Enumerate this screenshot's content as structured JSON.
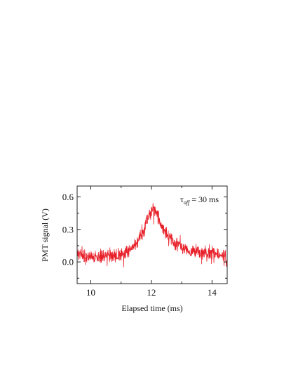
{
  "colors": {
    "trace": "#e8202a",
    "axis": "#222222"
  },
  "chart_data": {
    "type": "line",
    "title": "",
    "xlabel": "Elapsed time (ms)",
    "ylabel": "PMT signal (V)",
    "xlim": [
      9.55,
      14.5
    ],
    "ylim": [
      -0.2,
      0.7
    ],
    "xticks": [
      10,
      12,
      14
    ],
    "xtick_labels": [
      "10",
      "12",
      "14"
    ],
    "xminor": [
      11,
      13
    ],
    "yticks": [
      0.0,
      0.3,
      0.6
    ],
    "ytick_labels": [
      "0.0",
      "0.3",
      "0.6"
    ],
    "yminor": [
      -0.15,
      0.15,
      0.45
    ],
    "grid": false,
    "legend": "none",
    "annotation": {
      "symbol": "τ",
      "subscript": "off",
      "rest": " = 30 ms",
      "placement": "top-right"
    },
    "series": [
      {
        "color": "#e8202a",
        "x": [
          9.55,
          9.75,
          10.0,
          10.25,
          10.5,
          10.75,
          11.0,
          11.2,
          11.4,
          11.6,
          11.75,
          11.85,
          11.95,
          12.02,
          12.1,
          12.2,
          12.35,
          12.5,
          12.7,
          12.9,
          13.1,
          13.3,
          13.5,
          13.75,
          14.0,
          14.25,
          14.45,
          14.5
        ],
        "y": [
          0.07,
          0.06,
          0.04,
          0.05,
          0.05,
          0.06,
          0.07,
          0.1,
          0.14,
          0.22,
          0.3,
          0.38,
          0.45,
          0.5,
          0.47,
          0.42,
          0.33,
          0.26,
          0.2,
          0.15,
          0.12,
          0.1,
          0.09,
          0.08,
          0.08,
          0.07,
          0.04,
          0.0
        ]
      }
    ]
  }
}
